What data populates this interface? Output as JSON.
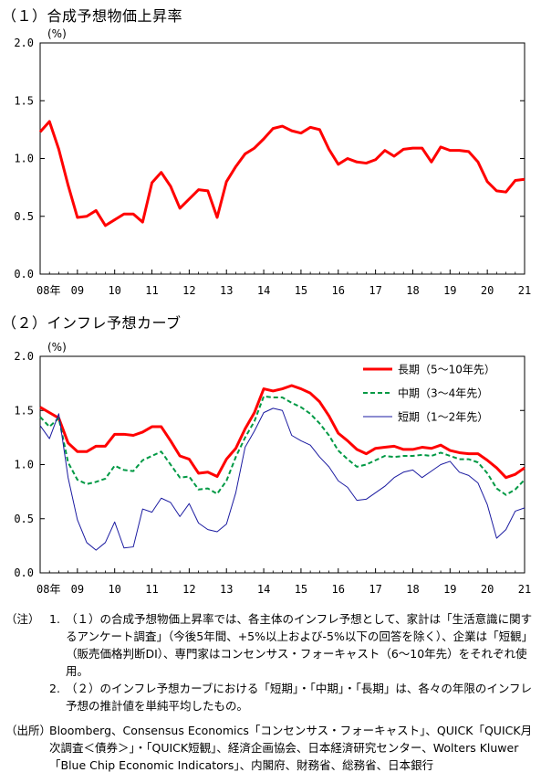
{
  "chart_data": [
    {
      "type": "line",
      "title": "（１）合成予想物価上昇率",
      "ylabel": "(%)",
      "ylim": [
        0.0,
        2.0
      ],
      "yticks": [
        "0.0",
        "0.5",
        "1.0",
        "1.5",
        "2.0"
      ],
      "xlim": [
        2008.0,
        2021.0
      ],
      "xticks": [
        "08年",
        "09",
        "10",
        "11",
        "12",
        "13",
        "14",
        "15",
        "16",
        "17",
        "18",
        "19",
        "20",
        "21"
      ],
      "grid": false,
      "series": [
        {
          "color": "#ff0000",
          "x": [
            2008.0,
            2008.25,
            2008.5,
            2008.75,
            2009.0,
            2009.25,
            2009.5,
            2009.75,
            2010.0,
            2010.25,
            2010.5,
            2010.75,
            2011.0,
            2011.25,
            2011.5,
            2011.75,
            2012.0,
            2012.25,
            2012.5,
            2012.75,
            2013.0,
            2013.25,
            2013.5,
            2013.75,
            2014.0,
            2014.25,
            2014.5,
            2014.75,
            2015.0,
            2015.25,
            2015.5,
            2015.75,
            2016.0,
            2016.25,
            2016.5,
            2016.75,
            2017.0,
            2017.25,
            2017.5,
            2017.75,
            2018.0,
            2018.25,
            2018.5,
            2018.75,
            2019.0,
            2019.25,
            2019.5,
            2019.75,
            2020.0,
            2020.25,
            2020.5,
            2020.75,
            2021.0
          ],
          "values": [
            1.23,
            1.32,
            1.08,
            0.77,
            0.49,
            0.5,
            0.55,
            0.42,
            0.47,
            0.52,
            0.52,
            0.45,
            0.79,
            0.88,
            0.76,
            0.57,
            0.65,
            0.73,
            0.72,
            0.49,
            0.8,
            0.93,
            1.04,
            1.09,
            1.17,
            1.26,
            1.28,
            1.24,
            1.22,
            1.27,
            1.25,
            1.08,
            0.95,
            1.0,
            0.97,
            0.96,
            0.99,
            1.07,
            1.02,
            1.08,
            1.09,
            1.09,
            0.97,
            1.1,
            1.07,
            1.07,
            1.06,
            0.97,
            0.8,
            0.72,
            0.71,
            0.81,
            0.82
          ]
        }
      ]
    },
    {
      "type": "line",
      "title": "（２）インフレ予想カーブ",
      "ylabel": "(%)",
      "ylim": [
        0.0,
        2.0
      ],
      "yticks": [
        "0.0",
        "0.5",
        "1.0",
        "1.5",
        "2.0"
      ],
      "xlim": [
        2008.0,
        2021.0
      ],
      "xticks": [
        "08年",
        "09",
        "10",
        "11",
        "12",
        "13",
        "14",
        "15",
        "16",
        "17",
        "18",
        "19",
        "20",
        "21"
      ],
      "grid": false,
      "legend": "top-right",
      "series": [
        {
          "name": "長期（5〜10年先）",
          "color": "#ff0000",
          "style": "solid-thick",
          "x": [
            2008.0,
            2008.25,
            2008.5,
            2008.75,
            2009.0,
            2009.25,
            2009.5,
            2009.75,
            2010.0,
            2010.25,
            2010.5,
            2010.75,
            2011.0,
            2011.25,
            2011.5,
            2011.75,
            2012.0,
            2012.25,
            2012.5,
            2012.75,
            2013.0,
            2013.25,
            2013.5,
            2013.75,
            2014.0,
            2014.25,
            2014.5,
            2014.75,
            2015.0,
            2015.25,
            2015.5,
            2015.75,
            2016.0,
            2016.25,
            2016.5,
            2016.75,
            2017.0,
            2017.25,
            2017.5,
            2017.75,
            2018.0,
            2018.25,
            2018.5,
            2018.75,
            2019.0,
            2019.25,
            2019.5,
            2019.75,
            2020.0,
            2020.25,
            2020.5,
            2020.75,
            2021.0
          ],
          "values": [
            1.53,
            1.48,
            1.43,
            1.2,
            1.12,
            1.12,
            1.17,
            1.17,
            1.28,
            1.28,
            1.27,
            1.3,
            1.35,
            1.35,
            1.22,
            1.08,
            1.05,
            0.92,
            0.93,
            0.89,
            1.05,
            1.15,
            1.33,
            1.48,
            1.7,
            1.68,
            1.7,
            1.73,
            1.7,
            1.66,
            1.58,
            1.45,
            1.29,
            1.22,
            1.14,
            1.1,
            1.15,
            1.16,
            1.17,
            1.14,
            1.14,
            1.16,
            1.15,
            1.18,
            1.13,
            1.11,
            1.1,
            1.1,
            1.04,
            0.97,
            0.88,
            0.91,
            0.97
          ]
        },
        {
          "name": "中期（3〜4年先）",
          "color": "#009944",
          "style": "dashed",
          "x": [
            2008.0,
            2008.25,
            2008.5,
            2008.75,
            2009.0,
            2009.25,
            2009.5,
            2009.75,
            2010.0,
            2010.25,
            2010.5,
            2010.75,
            2011.0,
            2011.25,
            2011.5,
            2011.75,
            2012.0,
            2012.25,
            2012.5,
            2012.75,
            2013.0,
            2013.25,
            2013.5,
            2013.75,
            2014.0,
            2014.25,
            2014.5,
            2014.75,
            2015.0,
            2015.25,
            2015.5,
            2015.75,
            2016.0,
            2016.25,
            2016.5,
            2016.75,
            2017.0,
            2017.25,
            2017.5,
            2017.75,
            2018.0,
            2018.25,
            2018.5,
            2018.75,
            2019.0,
            2019.25,
            2019.5,
            2019.75,
            2020.0,
            2020.25,
            2020.5,
            2020.75,
            2021.0
          ],
          "values": [
            1.44,
            1.35,
            1.43,
            1.02,
            0.86,
            0.82,
            0.84,
            0.87,
            0.99,
            0.95,
            0.94,
            1.04,
            1.08,
            1.12,
            1.0,
            0.88,
            0.89,
            0.77,
            0.78,
            0.73,
            0.85,
            1.07,
            1.25,
            1.4,
            1.63,
            1.62,
            1.62,
            1.57,
            1.53,
            1.47,
            1.38,
            1.27,
            1.13,
            1.05,
            0.98,
            1.0,
            1.04,
            1.08,
            1.07,
            1.08,
            1.08,
            1.09,
            1.08,
            1.11,
            1.08,
            1.05,
            1.05,
            1.02,
            0.92,
            0.78,
            0.72,
            0.77,
            0.86
          ]
        },
        {
          "name": "短期（1〜2年先）",
          "color": "#1a1aa0",
          "style": "solid-thin",
          "x": [
            2008.0,
            2008.25,
            2008.5,
            2008.75,
            2009.0,
            2009.25,
            2009.5,
            2009.75,
            2010.0,
            2010.25,
            2010.5,
            2010.75,
            2011.0,
            2011.25,
            2011.5,
            2011.75,
            2012.0,
            2012.25,
            2012.5,
            2012.75,
            2013.0,
            2013.25,
            2013.5,
            2013.75,
            2014.0,
            2014.25,
            2014.5,
            2014.75,
            2015.0,
            2015.25,
            2015.5,
            2015.75,
            2016.0,
            2016.25,
            2016.5,
            2016.75,
            2017.0,
            2017.25,
            2017.5,
            2017.75,
            2018.0,
            2018.25,
            2018.5,
            2018.75,
            2019.0,
            2019.25,
            2019.5,
            2019.75,
            2020.0,
            2020.25,
            2020.5,
            2020.75,
            2021.0
          ],
          "values": [
            1.36,
            1.24,
            1.47,
            0.88,
            0.49,
            0.28,
            0.21,
            0.28,
            0.47,
            0.23,
            0.24,
            0.59,
            0.56,
            0.69,
            0.65,
            0.52,
            0.64,
            0.46,
            0.4,
            0.38,
            0.45,
            0.74,
            1.16,
            1.31,
            1.48,
            1.52,
            1.5,
            1.27,
            1.22,
            1.18,
            1.07,
            0.98,
            0.85,
            0.79,
            0.67,
            0.68,
            0.74,
            0.8,
            0.88,
            0.93,
            0.95,
            0.88,
            0.94,
            1.0,
            1.03,
            0.93,
            0.9,
            0.83,
            0.63,
            0.32,
            0.4,
            0.57,
            0.6
          ]
        }
      ]
    }
  ],
  "notes": {
    "head": "（注）",
    "items": [
      {
        "num": "1.",
        "text": "（１）の合成予想物価上昇率では、各主体のインフレ予想として、家計は「生活意識に関するアンケート調査」（今後5年間、+5%以上および-5%以下の回答を除く）、企業は「短観」（販売価格判断DI）、専門家はコンセンサス・フォーキャスト（6〜10年先）をそれぞれ使用。"
      },
      {
        "num": "2.",
        "text": "（２）のインフレ予想カーブにおける「短期」・「中期」・「長期」は、各々の年限のインフレ予想の推計値を単純平均したもの。"
      }
    ]
  },
  "source": {
    "head": "（出所）",
    "text": "Bloomberg、Consensus Economics「コンセンサス・フォーキャスト」、QUICK「QUICK月次調査＜債券＞」・「QUICK短観」、経済企画協会、日本経済研究センター、Wolters Kluwer「Blue Chip Economic Indicators」、内閣府、財務省、総務省、日本銀行"
  }
}
